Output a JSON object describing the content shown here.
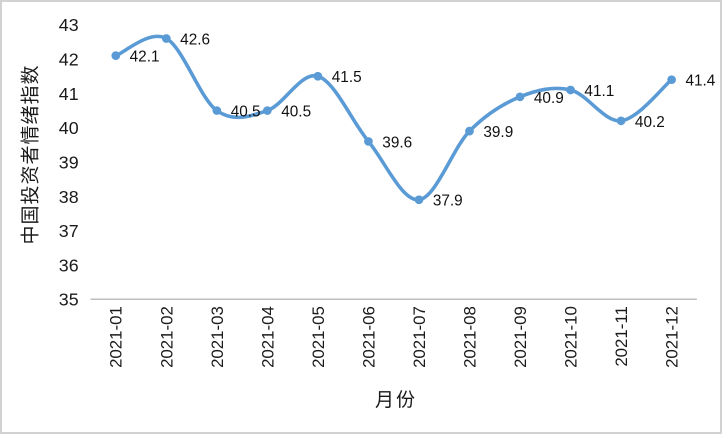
{
  "chart_data": {
    "type": "line",
    "smooth": true,
    "title": "",
    "xlabel": "月份",
    "ylabel": "中国投资者情绪指数",
    "categories": [
      "2021-01",
      "2021-02",
      "2021-03",
      "2021-04",
      "2021-05",
      "2021-06",
      "2021-07",
      "2021-08",
      "2021-09",
      "2021-10",
      "2021-11",
      "2021-12"
    ],
    "values": [
      42.1,
      42.6,
      40.5,
      40.5,
      41.5,
      39.6,
      37.9,
      39.9,
      40.9,
      41.1,
      40.2,
      41.4
    ],
    "data_labels": [
      "42.1",
      "42.6",
      "40.5",
      "40.5",
      "41.5",
      "39.6",
      "37.9",
      "39.9",
      "40.9",
      "41.1",
      "40.2",
      "41.4"
    ],
    "ylim": [
      35,
      43
    ],
    "yticks": [
      35,
      36,
      37,
      38,
      39,
      40,
      41,
      42,
      43
    ],
    "grid": false,
    "legend": "none",
    "marker": "circle",
    "colors": {
      "line": "#5B9BD5",
      "marker": "#5B9BD5",
      "axis_line": "#BFBFBF",
      "tick_text": "#1a1a1a",
      "data_label_text": "#111111",
      "frame_border": "#d2d2d2"
    }
  }
}
